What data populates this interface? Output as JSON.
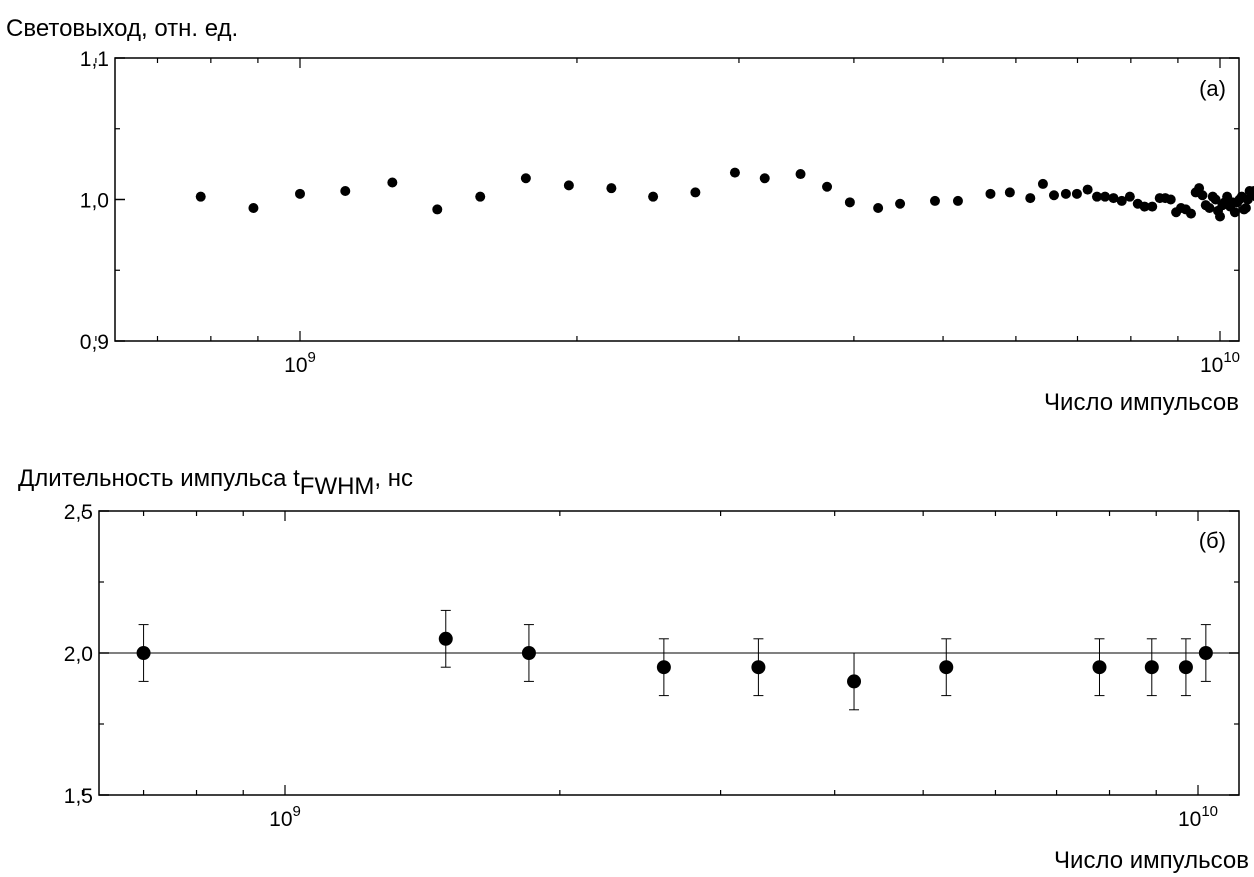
{
  "chart_data": [
    {
      "type": "scatter",
      "panel_label": "(а)",
      "ylabel": "Световыход, отн. ед.",
      "xlabel": "Число импульсов",
      "x_scale": "log",
      "xlim": [
        600000000.0,
        11000000000.0
      ],
      "ylim": [
        0.9,
        1.1
      ],
      "y_ticks": [
        {
          "value": 0.9,
          "label": "0,9"
        },
        {
          "value": 1.0,
          "label": "1,0"
        },
        {
          "value": 1.1,
          "label": "1,1"
        }
      ],
      "x_ticks_major": [
        {
          "value": 1000000000.0,
          "base": "10",
          "exp": "9"
        },
        {
          "value": 10000000000.0,
          "base": "10",
          "exp": "10"
        }
      ],
      "grid": false,
      "series": [
        {
          "marker": "circle",
          "color": "#000000",
          "points": [
            [
              780000000.0,
              1.002
            ],
            [
              890000000.0,
              0.994
            ],
            [
              1000000000.0,
              1.004
            ],
            [
              1120000000.0,
              1.006
            ],
            [
              1260000000.0,
              1.012
            ],
            [
              1410000000.0,
              0.993
            ],
            [
              1570000000.0,
              1.002
            ],
            [
              1760000000.0,
              1.015
            ],
            [
              1960000000.0,
              1.01
            ],
            [
              2180000000.0,
              1.008
            ],
            [
              2420000000.0,
              1.002
            ],
            [
              2690000000.0,
              1.005
            ],
            [
              2970000000.0,
              1.019
            ],
            [
              3200000000.0,
              1.015
            ],
            [
              3500000000.0,
              1.018
            ],
            [
              3740000000.0,
              1.009
            ],
            [
              3960000000.0,
              0.998
            ],
            [
              4250000000.0,
              0.994
            ],
            [
              4490000000.0,
              0.997
            ],
            [
              4900000000.0,
              0.999
            ],
            [
              5190000000.0,
              0.999
            ],
            [
              5630000000.0,
              1.004
            ],
            [
              5910000000.0,
              1.005
            ],
            [
              6220000000.0,
              1.001
            ],
            [
              6420000000.0,
              1.011
            ],
            [
              6600000000.0,
              1.003
            ],
            [
              6800000000.0,
              1.004
            ],
            [
              6990000000.0,
              1.004
            ],
            [
              7180000000.0,
              1.007
            ],
            [
              7350000000.0,
              1.002
            ],
            [
              7500000000.0,
              1.002
            ],
            [
              7660000000.0,
              1.001
            ],
            [
              7820000000.0,
              0.999
            ],
            [
              7980000000.0,
              1.002
            ],
            [
              8140000000.0,
              0.997
            ],
            [
              8280000000.0,
              0.995
            ],
            [
              8440000000.0,
              0.995
            ],
            [
              8600000000.0,
              1.001
            ],
            [
              8720000000.0,
              1.001
            ],
            [
              8840000000.0,
              1.0
            ],
            [
              8960000000.0,
              0.991
            ],
            [
              9070000000.0,
              0.994
            ],
            [
              9180000000.0,
              0.993
            ],
            [
              9300000000.0,
              0.99
            ],
            [
              9410000000.0,
              1.005
            ],
            [
              9490000000.0,
              1.008
            ],
            [
              9570000000.0,
              1.003
            ],
            [
              9650000000.0,
              0.996
            ],
            [
              9740000000.0,
              0.994
            ],
            [
              9820000000.0,
              1.002
            ],
            [
              9890000000.0,
              1.0
            ],
            [
              9950000000.0,
              0.992
            ],
            [
              10000000000.0,
              0.988
            ],
            [
              10060000000.0,
              0.996
            ],
            [
              10120000000.0,
              0.998
            ],
            [
              10180000000.0,
              1.002
            ],
            [
              10260000000.0,
              0.995
            ],
            [
              10320000000.0,
              0.998
            ],
            [
              10380000000.0,
              0.991
            ],
            [
              10440000000.0,
              0.998
            ],
            [
              10500000000.0,
              1.0
            ],
            [
              10560000000.0,
              1.002
            ],
            [
              10620000000.0,
              0.993
            ],
            [
              10670000000.0,
              0.994
            ],
            [
              10720000000.0,
              1.0
            ],
            [
              10770000000.0,
              1.006
            ],
            [
              10830000000.0,
              1.004
            ],
            [
              10890000000.0,
              1.006
            ],
            [
              10950000000.0,
              1.002
            ]
          ]
        }
      ]
    },
    {
      "type": "scatter",
      "panel_label": "(б)",
      "ylabel_main": "Длительность импульса t",
      "ylabel_sub": "FWHM",
      "ylabel_tail": ", нс",
      "xlabel": "Число импульсов",
      "x_scale": "log",
      "xlim": [
        600000000.0,
        11000000000.0
      ],
      "ylim": [
        1.5,
        2.5
      ],
      "y_ticks": [
        {
          "value": 1.5,
          "label": "1,5"
        },
        {
          "value": 2.0,
          "label": "2,0"
        },
        {
          "value": 2.5,
          "label": "2,5"
        }
      ],
      "x_ticks_major": [
        {
          "value": 1000000000.0,
          "base": "10",
          "exp": "9"
        },
        {
          "value": 10000000000.0,
          "base": "10",
          "exp": "10"
        }
      ],
      "reference_line": 2.0,
      "grid": false,
      "series": [
        {
          "marker": "circle",
          "color": "#000000",
          "points": [
            {
              "x": 700000000.0,
              "y": 2.0,
              "err": 0.1
            },
            {
              "x": 1500000000.0,
              "y": 2.05,
              "err": 0.1
            },
            {
              "x": 1850000000.0,
              "y": 2.0,
              "err": 0.1
            },
            {
              "x": 2600000000.0,
              "y": 1.95,
              "err": 0.1
            },
            {
              "x": 3300000000.0,
              "y": 1.95,
              "err": 0.1
            },
            {
              "x": 4200000000.0,
              "y": 1.9,
              "err": 0.1
            },
            {
              "x": 5300000000.0,
              "y": 1.95,
              "err": 0.1
            },
            {
              "x": 7800000000.0,
              "y": 1.95,
              "err": 0.1
            },
            {
              "x": 8900000000.0,
              "y": 1.95,
              "err": 0.1
            },
            {
              "x": 9700000000.0,
              "y": 1.95,
              "err": 0.1
            },
            {
              "x": 10200000000.0,
              "y": 2.0,
              "err": 0.1
            }
          ]
        }
      ]
    }
  ]
}
